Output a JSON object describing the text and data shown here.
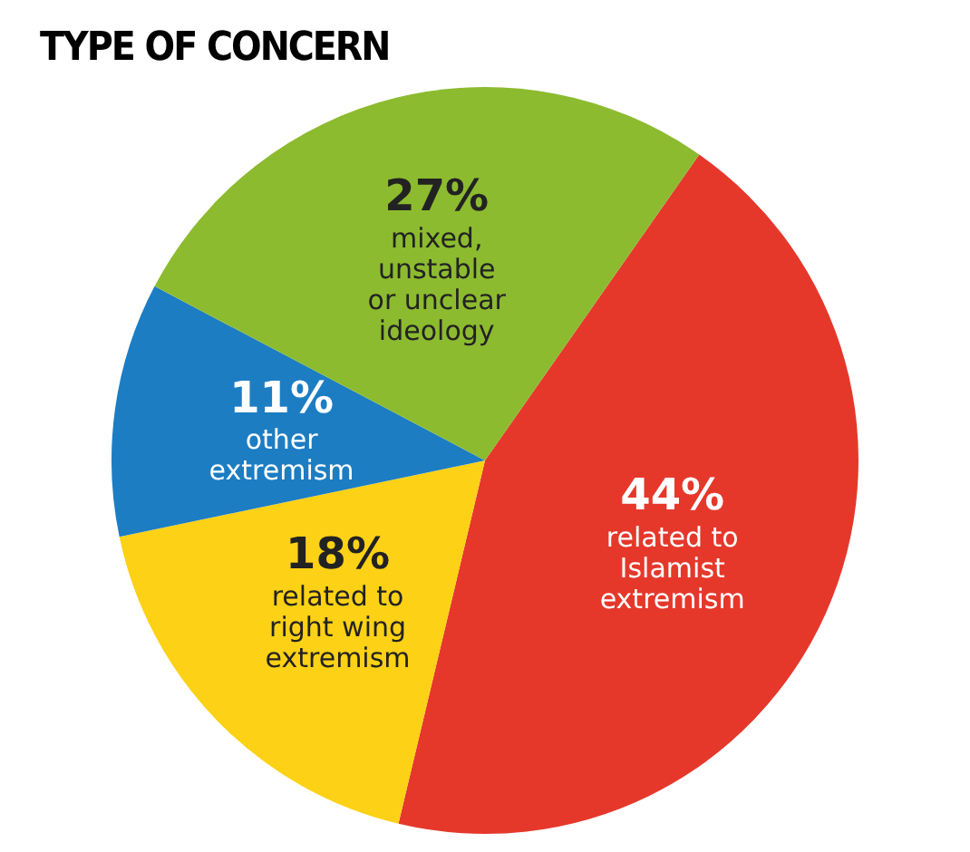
{
  "chart_data": {
    "type": "pie",
    "title": "TYPE OF CONCERN",
    "categories": [
      "related to\nIslamist\nextremism",
      "related to\nright wing\nextremism",
      "other\nextremism",
      "mixed,\nunstable\nor unclear\nideology"
    ],
    "values": [
      44,
      18,
      11,
      27
    ],
    "value_labels": [
      "44%",
      "18%",
      "11%",
      "27%"
    ],
    "colors": [
      "#e5382b",
      "#fcd116",
      "#1c7dc3",
      "#8cbb2f"
    ],
    "legend": false
  }
}
